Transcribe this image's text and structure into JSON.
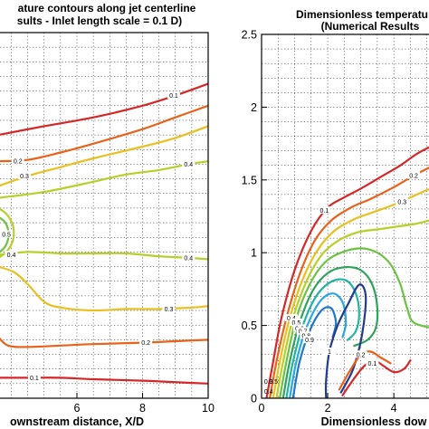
{
  "palette": {
    "0.1": "#d62728",
    "0.2": "#e8621a",
    "0.3": "#e8c020",
    "0.4": "#b8cf28",
    "0.5": "#6cc242",
    "0.6": "#2fa35a",
    "0.7": "#23b4a0",
    "0.8": "#2aa6e0",
    "0.9": "#1f77c8",
    "1": "#243b8c"
  },
  "chart_data": [
    {
      "type": "contour",
      "title_lines": [
        "ature contours along jet centerline",
        "sults - Inlet length scale = 0.1 D)"
      ],
      "xlabel": "ownstream distance, X/D",
      "ylabel": "",
      "xlim": [
        3.6,
        10
      ],
      "ylim": [
        0,
        2.5
      ],
      "x_ticks": [
        6,
        8,
        10
      ],
      "y_ticks": [],
      "grid": true,
      "levels": [
        {
          "label": "0.1",
          "color_key": "0.1",
          "points": [
            [
              3.6,
              1.8
            ],
            [
              5,
              1.86
            ],
            [
              6.5,
              1.92
            ],
            [
              8,
              2.0
            ],
            [
              9,
              2.07
            ],
            [
              10,
              2.15
            ]
          ],
          "label_at": [
            8.95,
            2.07
          ]
        },
        {
          "label": "0.2",
          "color_key": "0.2",
          "points": [
            [
              3.6,
              1.62
            ],
            [
              4.5,
              1.63
            ],
            [
              5.5,
              1.68
            ],
            [
              6.5,
              1.74
            ],
            [
              8,
              1.84
            ],
            [
              9,
              1.92
            ],
            [
              10,
              2.0
            ]
          ],
          "label_at": [
            4.2,
            1.62
          ]
        },
        {
          "label": "0.3",
          "color_key": "0.3",
          "points": [
            [
              3.6,
              1.45
            ],
            [
              4.5,
              1.52
            ],
            [
              5.5,
              1.58
            ],
            [
              6.5,
              1.64
            ],
            [
              8,
              1.72
            ],
            [
              9,
              1.78
            ],
            [
              10,
              1.86
            ]
          ],
          "label_at": [
            4.4,
            1.52
          ]
        },
        {
          "label": "0.4",
          "color_key": "0.4",
          "points": [
            [
              3.6,
              1.37
            ],
            [
              5,
              1.41
            ],
            [
              6.5,
              1.48
            ],
            [
              7.5,
              1.53
            ],
            [
              8.5,
              1.56
            ],
            [
              9.4,
              1.6
            ],
            [
              10,
              1.62
            ]
          ],
          "label_at": [
            9.4,
            1.6
          ]
        },
        {
          "label": "0.4",
          "color_key": "0.4",
          "points": [
            [
              3.6,
              0.98
            ],
            [
              4.5,
              1.0
            ],
            [
              5.5,
              0.99
            ],
            [
              6.5,
              0.99
            ],
            [
              7.5,
              0.99
            ],
            [
              8.5,
              0.97
            ],
            [
              9.4,
              0.96
            ],
            [
              10,
              0.95
            ]
          ],
          "label_at": [
            9.4,
            0.96
          ]
        },
        {
          "label": "0.4",
          "color_key": "0.4",
          "points": [
            [
              3.6,
              0.96
            ],
            [
              3.85,
              1.0
            ],
            [
              4.05,
              1.08
            ],
            [
              4.05,
              1.18
            ],
            [
              3.85,
              1.26
            ],
            [
              3.6,
              1.3
            ]
          ],
          "label_at": [
            4.0,
            0.98
          ]
        },
        {
          "label": "0.5",
          "color_key": "0.5",
          "points": [
            [
              3.6,
              0.99
            ],
            [
              3.82,
              1.04
            ],
            [
              3.92,
              1.12
            ],
            [
              3.82,
              1.2
            ],
            [
              3.6,
              1.24
            ]
          ],
          "label_at": [
            3.85,
            1.12
          ]
        },
        {
          "label": "0.3",
          "color_key": "0.3",
          "points": [
            [
              3.6,
              0.9
            ],
            [
              4.1,
              0.86
            ],
            [
              4.5,
              0.78
            ],
            [
              5.0,
              0.66
            ],
            [
              5.5,
              0.62
            ],
            [
              6.5,
              0.6
            ],
            [
              7.5,
              0.61
            ],
            [
              8.5,
              0.61
            ],
            [
              9.5,
              0.62
            ],
            [
              10,
              0.63
            ]
          ],
          "label_at": [
            8.8,
            0.61
          ]
        },
        {
          "label": "0.2",
          "color_key": "0.2",
          "points": [
            [
              3.6,
              0.42
            ],
            [
              3.9,
              0.36
            ],
            [
              4.5,
              0.35
            ],
            [
              5.5,
              0.36
            ],
            [
              6.5,
              0.37
            ],
            [
              8,
              0.38
            ],
            [
              9,
              0.39
            ],
            [
              10,
              0.4
            ]
          ],
          "label_at": [
            8.1,
            0.38
          ]
        },
        {
          "label": "0.1",
          "color_key": "0.1",
          "points": [
            [
              3.6,
              0.14
            ],
            [
              4.5,
              0.14
            ],
            [
              5.5,
              0.14
            ],
            [
              6.5,
              0.13
            ],
            [
              8,
              0.12
            ],
            [
              9,
              0.11
            ],
            [
              10,
              0.1
            ]
          ],
          "label_at": [
            4.7,
            0.14
          ]
        }
      ]
    },
    {
      "type": "contour",
      "title_lines": [
        "Dimensionless temperatu",
        "(Numerical Results"
      ],
      "xlabel": "Dimensionless dow",
      "ylabel": "",
      "xlim": [
        0,
        5.2
      ],
      "ylim": [
        0,
        2.5
      ],
      "x_ticks": [
        0,
        2,
        4
      ],
      "y_ticks": [
        0,
        0.5,
        1,
        1.5,
        2,
        2.5
      ],
      "grid": true,
      "levels": [
        {
          "label": "0.1",
          "color_key": "0.1",
          "points": [
            [
              0.15,
              0
            ],
            [
              0.35,
              0.25
            ],
            [
              0.6,
              0.55
            ],
            [
              1.0,
              0.88
            ],
            [
              1.5,
              1.15
            ],
            [
              2.0,
              1.31
            ],
            [
              2.5,
              1.38
            ],
            [
              3.0,
              1.44
            ],
            [
              3.6,
              1.52
            ],
            [
              4.2,
              1.6
            ],
            [
              4.7,
              1.68
            ],
            [
              5.2,
              1.74
            ]
          ],
          "label_at": [
            1.9,
            1.29
          ]
        },
        {
          "label": "0.2",
          "color_key": "0.2",
          "points": [
            [
              0.25,
              0
            ],
            [
              0.45,
              0.25
            ],
            [
              0.75,
              0.55
            ],
            [
              1.15,
              0.85
            ],
            [
              1.6,
              1.08
            ],
            [
              2.1,
              1.22
            ],
            [
              2.7,
              1.31
            ],
            [
              3.3,
              1.37
            ],
            [
              4.0,
              1.45
            ],
            [
              4.6,
              1.53
            ],
            [
              5.2,
              1.6
            ]
          ],
          "label_at": [
            4.6,
            1.53
          ]
        },
        {
          "label": "0.3",
          "color_key": "0.3",
          "points": [
            [
              0.35,
              0
            ],
            [
              0.55,
              0.25
            ],
            [
              0.85,
              0.55
            ],
            [
              1.25,
              0.82
            ],
            [
              1.7,
              1.02
            ],
            [
              2.2,
              1.15
            ],
            [
              2.8,
              1.23
            ],
            [
              3.4,
              1.28
            ],
            [
              4.0,
              1.33
            ],
            [
              4.6,
              1.39
            ],
            [
              5.2,
              1.45
            ]
          ],
          "label_at": [
            4.25,
            1.35
          ]
        },
        {
          "label": "0.4",
          "color_key": "0.4",
          "points": [
            [
              0.45,
              0
            ],
            [
              0.65,
              0.25
            ],
            [
              0.95,
              0.55
            ],
            [
              1.35,
              0.8
            ],
            [
              1.8,
              0.98
            ],
            [
              2.3,
              1.08
            ],
            [
              2.9,
              1.14
            ],
            [
              3.5,
              1.16
            ],
            [
              4.1,
              1.18
            ],
            [
              4.7,
              1.2
            ],
            [
              5.2,
              1.23
            ]
          ],
          "label_at": [
            0.9,
            0.55
          ]
        },
        {
          "label": "0.5",
          "color_key": "0.5",
          "points": [
            [
              0.55,
              0
            ],
            [
              0.75,
              0.25
            ],
            [
              1.05,
              0.55
            ],
            [
              1.45,
              0.78
            ],
            [
              1.9,
              0.93
            ],
            [
              2.4,
              1.0
            ],
            [
              3.0,
              1.03
            ],
            [
              3.5,
              1.0
            ],
            [
              3.9,
              0.92
            ],
            [
              4.2,
              0.78
            ],
            [
              4.4,
              0.62
            ],
            [
              4.6,
              0.52
            ],
            [
              5.2,
              0.48
            ]
          ],
          "label_at": [
            1.05,
            0.52
          ]
        },
        {
          "label": "0.6",
          "color_key": "0.6",
          "points": [
            [
              0.65,
              0
            ],
            [
              0.85,
              0.25
            ],
            [
              1.15,
              0.52
            ],
            [
              1.55,
              0.74
            ],
            [
              2.0,
              0.86
            ],
            [
              2.5,
              0.9
            ],
            [
              3.0,
              0.88
            ],
            [
              3.35,
              0.78
            ],
            [
              3.5,
              0.62
            ],
            [
              3.45,
              0.48
            ],
            [
              3.2,
              0.4
            ],
            [
              2.8,
              0.36
            ]
          ],
          "label_at": [
            1.15,
            0.48
          ]
        },
        {
          "label": "0.7",
          "color_key": "0.7",
          "points": [
            [
              0.75,
              0
            ],
            [
              0.95,
              0.25
            ],
            [
              1.25,
              0.5
            ],
            [
              1.65,
              0.7
            ],
            [
              2.1,
              0.8
            ],
            [
              2.55,
              0.81
            ],
            [
              2.85,
              0.72
            ],
            [
              2.95,
              0.58
            ],
            [
              2.85,
              0.46
            ],
            [
              2.6,
              0.4
            ]
          ],
          "label_at": [
            1.25,
            0.46
          ]
        },
        {
          "label": "0.8",
          "color_key": "0.8",
          "points": [
            [
              0.85,
              0
            ],
            [
              1.05,
              0.25
            ],
            [
              1.35,
              0.48
            ],
            [
              1.75,
              0.66
            ],
            [
              2.15,
              0.72
            ],
            [
              2.45,
              0.66
            ],
            [
              2.55,
              0.52
            ],
            [
              2.45,
              0.42
            ]
          ],
          "label_at": [
            1.35,
            0.43
          ]
        },
        {
          "label": "0.9",
          "color_key": "0.9",
          "points": [
            [
              0.95,
              0
            ],
            [
              1.15,
              0.25
            ],
            [
              1.45,
              0.46
            ],
            [
              1.8,
              0.6
            ],
            [
              2.1,
              0.62
            ],
            [
              2.25,
              0.52
            ],
            [
              2.15,
              0.42
            ]
          ],
          "label_at": [
            1.45,
            0.4
          ]
        },
        {
          "label": "1",
          "color_key": "1",
          "points": [
            [
              1.95,
              0
            ],
            [
              1.95,
              0.12
            ],
            [
              2.05,
              0.32
            ],
            [
              2.3,
              0.5
            ],
            [
              2.6,
              0.64
            ],
            [
              2.95,
              0.78
            ],
            [
              3.15,
              0.7
            ],
            [
              3.05,
              0.45
            ],
            [
              2.8,
              0.22
            ],
            [
              2.55,
              0.1
            ],
            [
              2.4,
              0.04
            ]
          ],
          "label_at": [
            2.05,
            0.32
          ]
        },
        {
          "label": "0.1",
          "color_key": "0.1",
          "points": [
            [
              2.45,
              0.02
            ],
            [
              2.75,
              0.12
            ],
            [
              3.1,
              0.22
            ],
            [
              3.4,
              0.26
            ],
            [
              3.7,
              0.22
            ],
            [
              4.0,
              0.18
            ],
            [
              4.3,
              0.2
            ],
            [
              4.5,
              0.26
            ]
          ],
          "label_at": [
            3.35,
            0.24
          ]
        },
        {
          "label": "0.2",
          "color_key": "0.2",
          "points": [
            [
              2.35,
              0.06
            ],
            [
              2.65,
              0.18
            ],
            [
              3.0,
              0.3
            ],
            [
              3.3,
              0.32
            ],
            [
              3.6,
              0.28
            ],
            [
              3.9,
              0.24
            ]
          ],
          "label_at": [
            3.0,
            0.3
          ]
        }
      ],
      "corner_labels": [
        {
          "text": "0.3",
          "at": [
            0.05,
            0.1
          ]
        },
        {
          "text": "0.4",
          "at": [
            0.05,
            0.03
          ]
        },
        {
          "text": "0.5",
          "at": [
            0.2,
            0.1
          ]
        }
      ]
    }
  ]
}
